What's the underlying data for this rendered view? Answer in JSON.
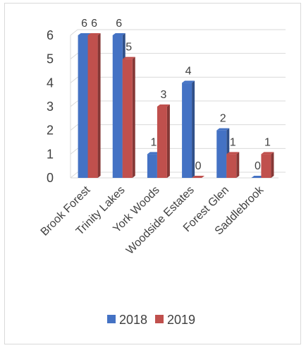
{
  "chart_data": {
    "type": "bar",
    "categories": [
      "Brook Forest",
      "Trinity Lakes",
      "York Woods",
      "Woodside Estates",
      "Forest Glen",
      "Saddlebrook"
    ],
    "series": [
      {
        "name": "2018",
        "values": [
          6,
          6,
          1,
          4,
          2,
          0
        ],
        "color": "#4472c4"
      },
      {
        "name": "2019",
        "values": [
          6,
          5,
          3,
          0,
          1,
          1
        ],
        "color": "#c0504d"
      }
    ],
    "ylim": [
      0,
      6
    ],
    "yticks": [
      0,
      1,
      2,
      3,
      4,
      5,
      6
    ],
    "grid": true,
    "legend": "bottom",
    "title": "",
    "xlabel": "",
    "ylabel": ""
  }
}
